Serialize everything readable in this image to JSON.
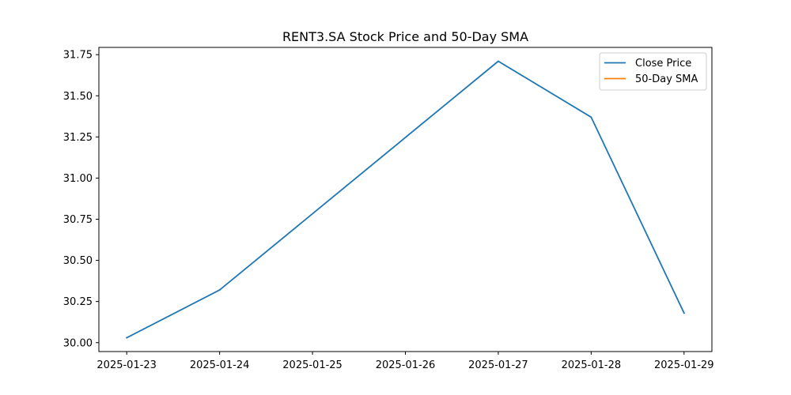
{
  "chart_data": {
    "type": "line",
    "title": "RENT3.SA Stock Price and 50-Day SMA",
    "xlabel": "",
    "ylabel": "",
    "x": [
      "2025-01-23",
      "2025-01-24",
      "2025-01-25",
      "2025-01-26",
      "2025-01-27",
      "2025-01-28",
      "2025-01-29"
    ],
    "xticks": [
      "2025-01-23",
      "2025-01-24",
      "2025-01-25",
      "2025-01-26",
      "2025-01-27",
      "2025-01-28",
      "2025-01-29"
    ],
    "series": [
      {
        "name": "Close Price",
        "color": "#1f77b4",
        "points": [
          {
            "x": "2025-01-23",
            "y": 30.03
          },
          {
            "x": "2025-01-24",
            "y": 30.32
          },
          {
            "x": "2025-01-27",
            "y": 31.71
          },
          {
            "x": "2025-01-28",
            "y": 31.37
          },
          {
            "x": "2025-01-29",
            "y": 30.18
          }
        ]
      },
      {
        "name": "50-Day SMA",
        "color": "#ff7f0e",
        "points": []
      }
    ],
    "yticks": [
      "30.00",
      "30.25",
      "30.50",
      "30.75",
      "31.00",
      "31.25",
      "31.50",
      "31.75"
    ],
    "ylim": [
      29.946,
      31.794
    ],
    "grid": false,
    "legend_position": "top-right"
  }
}
